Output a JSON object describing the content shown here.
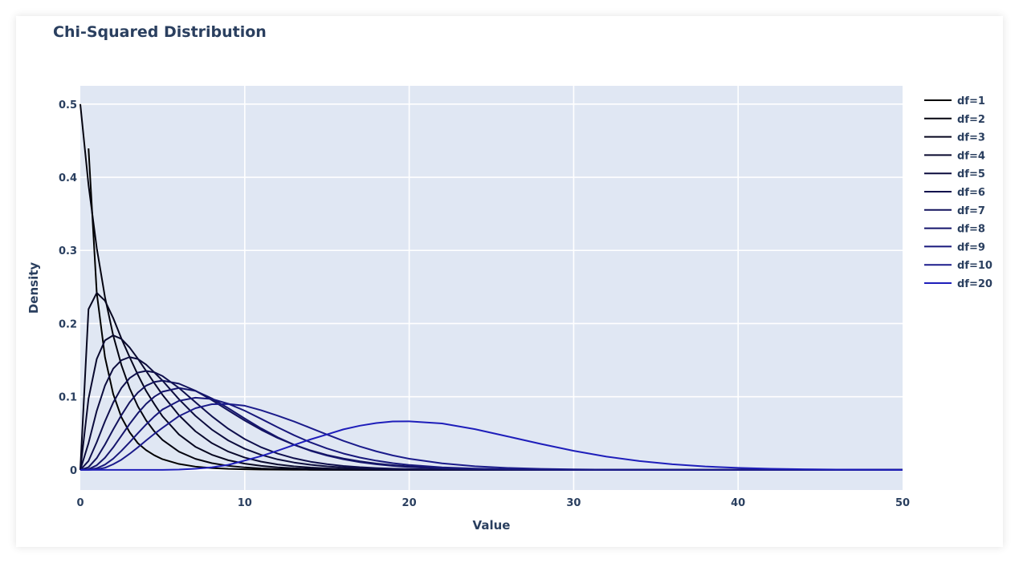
{
  "chart_data": {
    "type": "line",
    "title": "Chi-Squared Distribution",
    "xlabel": "Value",
    "ylabel": "Density",
    "xlim": [
      0,
      50
    ],
    "ylim": [
      -0.0275,
      0.525
    ],
    "x_ticks": [
      0,
      10,
      20,
      30,
      40,
      50
    ],
    "y_ticks": [
      0,
      0.1,
      0.2,
      0.3,
      0.4,
      0.5
    ],
    "x_tick_labels": [
      "0",
      "10",
      "20",
      "30",
      "40",
      "50"
    ],
    "y_tick_labels": [
      "0",
      "0.1",
      "0.2",
      "0.3",
      "0.4",
      "0.5"
    ],
    "grid": true,
    "legend_position": "top-right",
    "plot_bg": "#e0e7f3",
    "grid_color": "#ffffff",
    "x": [
      0,
      0.5,
      1,
      1.5,
      2,
      2.5,
      3,
      3.5,
      4,
      4.5,
      5,
      6,
      7,
      8,
      9,
      10,
      11,
      12,
      13,
      14,
      15,
      16,
      17,
      18,
      19,
      20,
      22,
      24,
      26,
      28,
      30,
      32,
      34,
      36,
      38,
      40,
      42,
      44,
      46,
      48,
      50
    ],
    "series": [
      {
        "name": "df=1",
        "color": "#000000",
        "values": [
          null,
          0.4394,
          0.242,
          0.1542,
          0.1038,
          0.072,
          0.0514,
          0.0365,
          0.027,
          0.02,
          0.0146,
          0.0081,
          0.0045,
          0.0025,
          0.0014,
          0.0009,
          0.0005,
          0.0003,
          0.0002,
          0.0001,
          0.0001,
          0,
          0,
          0,
          0,
          0,
          0,
          0,
          0,
          0,
          0,
          0,
          0,
          0,
          0,
          0,
          0,
          0,
          0,
          0,
          0
        ]
      },
      {
        "name": "df=2",
        "color": "#03030f",
        "values": [
          0.5,
          0.3894,
          0.3033,
          0.2362,
          0.1839,
          0.1433,
          0.1116,
          0.0869,
          0.0677,
          0.0527,
          0.041,
          0.0249,
          0.0151,
          0.0092,
          0.0056,
          0.0034,
          0.002,
          0.0012,
          0.0008,
          0.0005,
          0.0003,
          0.0002,
          0.0001,
          0.0001,
          0,
          0,
          0,
          0,
          0,
          0,
          0,
          0,
          0,
          0,
          0,
          0,
          0,
          0,
          0,
          0,
          0
        ]
      },
      {
        "name": "df=3",
        "color": "#06061f",
        "values": [
          0,
          0.2197,
          0.242,
          0.2313,
          0.2076,
          0.1795,
          0.1542,
          0.13,
          0.108,
          0.09,
          0.0732,
          0.0483,
          0.0316,
          0.0207,
          0.0132,
          0.0085,
          0.0055,
          0.0035,
          0.0022,
          0.0014,
          0.0009,
          0.0006,
          0.0004,
          0.0002,
          0.0001,
          0.0001,
          0,
          0,
          0,
          0,
          0,
          0,
          0,
          0,
          0,
          0,
          0,
          0,
          0,
          0,
          0
        ]
      },
      {
        "name": "df=4",
        "color": "#09092e",
        "values": [
          0,
          0.0974,
          0.1516,
          0.1771,
          0.1839,
          0.1791,
          0.1673,
          0.1521,
          0.1353,
          0.1186,
          0.1026,
          0.0747,
          0.0528,
          0.0366,
          0.025,
          0.0168,
          0.0113,
          0.0074,
          0.0049,
          0.0032,
          0.0021,
          0.0013,
          0.0009,
          0.0006,
          0.0004,
          0.0002,
          0.0001,
          0.0001,
          0,
          0,
          0,
          0,
          0,
          0,
          0,
          0,
          0,
          0,
          0,
          0,
          0
        ]
      },
      {
        "name": "df=5",
        "color": "#0c0c3e",
        "values": [
          0,
          0.0366,
          0.0807,
          0.1152,
          0.1384,
          0.1499,
          0.1542,
          0.1516,
          0.144,
          0.1333,
          0.122,
          0.0966,
          0.0739,
          0.0551,
          0.0402,
          0.0289,
          0.0205,
          0.0144,
          0.0101,
          0.007,
          0.0048,
          0.0033,
          0.0022,
          0.0015,
          0.001,
          0.0007,
          0.0003,
          0.0001,
          0,
          0,
          0,
          0,
          0,
          0,
          0,
          0,
          0,
          0,
          0,
          0,
          0
        ]
      },
      {
        "name": "df=6",
        "color": "#0f0f4d",
        "values": [
          0,
          0.0122,
          0.0379,
          0.0664,
          0.092,
          0.112,
          0.1255,
          0.133,
          0.1353,
          0.1334,
          0.1283,
          0.112,
          0.0925,
          0.0733,
          0.0562,
          0.0421,
          0.0309,
          0.0223,
          0.0159,
          0.0112,
          0.0079,
          0.0054,
          0.0037,
          0.0025,
          0.0017,
          0.0011,
          0.0005,
          0.0002,
          0.0001,
          0,
          0,
          0,
          0,
          0,
          0,
          0,
          0,
          0,
          0,
          0,
          0
        ]
      },
      {
        "name": "df=7",
        "color": "#12125d",
        "values": [
          0,
          0.0037,
          0.0161,
          0.0346,
          0.0553,
          0.0748,
          0.0924,
          0.1057,
          0.1151,
          0.1202,
          0.122,
          0.1179,
          0.1083,
          0.0954,
          0.0813,
          0.0675,
          0.0548,
          0.0437,
          0.0343,
          0.0266,
          0.0204,
          0.0155,
          0.0117,
          0.0087,
          0.0065,
          0.0048,
          0.0026,
          0.0014,
          0.0007,
          0.0004,
          0.0002,
          0.0001,
          0,
          0,
          0,
          0,
          0,
          0,
          0,
          0,
          0
        ]
      },
      {
        "name": "df=8",
        "color": "#15156c",
        "values": [
          0,
          0.001,
          0.0063,
          0.0166,
          0.0307,
          0.0467,
          0.0628,
          0.0775,
          0.0902,
          0.1,
          0.1069,
          0.112,
          0.108,
          0.0977,
          0.0843,
          0.0702,
          0.0567,
          0.0446,
          0.0344,
          0.0261,
          0.0196,
          0.0145,
          0.0106,
          0.0077,
          0.0055,
          0.0039,
          0.002,
          0.001,
          0.0005,
          0.0002,
          0.0001,
          0,
          0,
          0,
          0,
          0,
          0,
          0,
          0,
          0,
          0
        ]
      },
      {
        "name": "df=9",
        "color": "#18187c",
        "values": [
          0,
          0.0003,
          0.0022,
          0.0072,
          0.0153,
          0.026,
          0.0378,
          0.0501,
          0.062,
          0.073,
          0.0826,
          0.0944,
          0.0987,
          0.0969,
          0.0904,
          0.0809,
          0.0697,
          0.0583,
          0.0474,
          0.0376,
          0.0293,
          0.0224,
          0.0169,
          0.0126,
          0.0092,
          0.0067,
          0.0035,
          0.0018,
          0.0009,
          0.0004,
          0.0002,
          0.0001,
          0,
          0,
          0,
          0,
          0,
          0,
          0,
          0,
          0
        ]
      },
      {
        "name": "df=10",
        "color": "#1b1b8b",
        "values": [
          0,
          0.0001,
          0.0008,
          0.0029,
          0.0077,
          0.0139,
          0.022,
          0.0308,
          0.0402,
          0.0492,
          0.0575,
          0.0735,
          0.0843,
          0.0898,
          0.0901,
          0.0877,
          0.0815,
          0.0741,
          0.0662,
          0.0573,
          0.0483,
          0.0397,
          0.032,
          0.0254,
          0.0198,
          0.0153,
          0.0089,
          0.005,
          0.0027,
          0.0014,
          0.0007,
          0.0003,
          0.0002,
          0.0001,
          0,
          0,
          0,
          0,
          0,
          0,
          0
        ]
      },
      {
        "name": "df=20",
        "color": "#1e1eba",
        "values": [
          0,
          0,
          0,
          0,
          0,
          0,
          0,
          0,
          0,
          0,
          0,
          0.0005,
          0.0015,
          0.0035,
          0.0069,
          0.0128,
          0.0189,
          0.0263,
          0.0341,
          0.0417,
          0.0485,
          0.0554,
          0.0604,
          0.064,
          0.0662,
          0.0664,
          0.0635,
          0.0557,
          0.0457,
          0.0355,
          0.0261,
          0.0181,
          0.0121,
          0.0077,
          0.0047,
          0.0028,
          0.0016,
          0.0009,
          0.0005,
          0.0003,
          0.0001
        ]
      }
    ]
  }
}
